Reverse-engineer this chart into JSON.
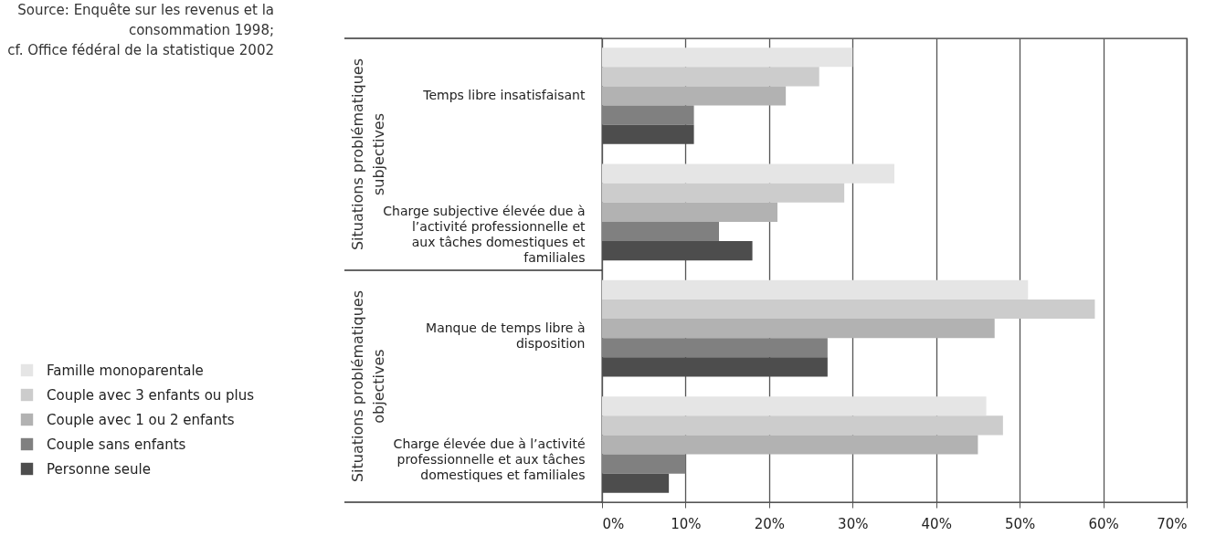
{
  "chart_data": {
    "type": "bar",
    "orientation": "horizontal",
    "categories": [
      "Temps libre insatisfaisant",
      "Charge subjective élevée due à l’activité professionnelle et aux tâches domestiques et familiales",
      "Manque de temps libre à disposition",
      "Charge élevée due à l’activité professionnelle et aux tâches domestiques et familiales"
    ],
    "series": [
      {
        "name": "Famille monoparentale",
        "color": "#e5e5e5",
        "values": [
          30,
          35,
          51,
          46
        ]
      },
      {
        "name": "Couple avec 3 enfants ou plus",
        "color": "#cccccc",
        "values": [
          26,
          29,
          59,
          48
        ]
      },
      {
        "name": "Couple avec 1 ou 2 enfants",
        "color": "#b2b2b2",
        "values": [
          22,
          21,
          47,
          45
        ]
      },
      {
        "name": "Couple sans enfants",
        "color": "#808080",
        "values": [
          11,
          14,
          27,
          10
        ]
      },
      {
        "name": "Personne seule",
        "color": "#4d4d4d",
        "values": [
          11,
          18,
          27,
          8
        ]
      }
    ],
    "xlim": [
      0,
      70
    ],
    "xticks": [
      {
        "value": 0,
        "label": "0%"
      },
      {
        "value": 10,
        "label": "10%"
      },
      {
        "value": 20,
        "label": "20%"
      },
      {
        "value": 30,
        "label": "30%"
      },
      {
        "value": 40,
        "label": "40%"
      },
      {
        "value": 50,
        "label": "50%"
      },
      {
        "value": 60,
        "label": "60%"
      },
      {
        "value": 70,
        "label": "70%"
      }
    ],
    "grid": "x",
    "legend": "bottom left",
    "annotations": [
      "Source: Enquête sur les revenus et la consommation 1998; cf. Office fédéral de la statistique 2002",
      "Situations problématiques subjectives",
      "Situations problématiques objectives"
    ]
  }
}
